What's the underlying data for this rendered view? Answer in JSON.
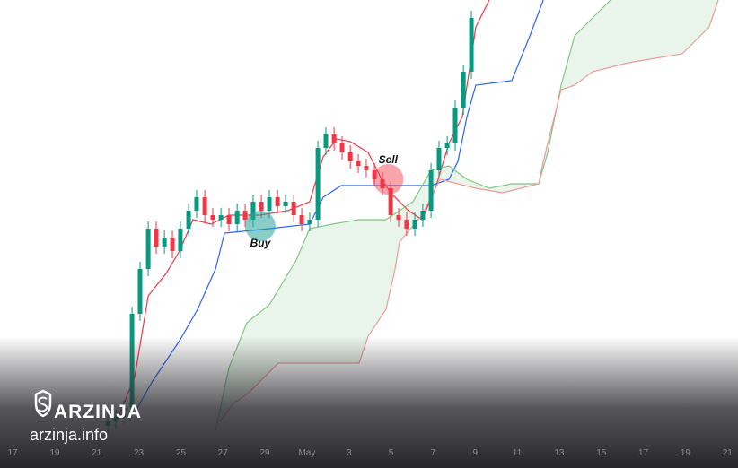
{
  "chart_data": {
    "type": "candlestick",
    "up_color": "#089981",
    "down_color": "#f23645",
    "xlim": [
      16.4,
      51.5
    ],
    "ylim": [
      0,
      522
    ],
    "xticks": [
      17,
      19,
      21,
      23,
      25,
      27,
      29,
      {
        "value": 31,
        "label": "May"
      },
      {
        "value": 33,
        "label": "3"
      },
      {
        "value": 35,
        "label": "5"
      },
      {
        "value": 37,
        "label": "7"
      },
      {
        "value": 39,
        "label": "9"
      },
      {
        "value": 41,
        "label": "11"
      },
      {
        "value": 43,
        "label": "13"
      },
      {
        "value": 45,
        "label": "15"
      },
      {
        "value": 47,
        "label": "17"
      },
      {
        "value": 49,
        "label": "19"
      },
      {
        "value": 51,
        "label": "21"
      }
    ],
    "x": [
      21.53,
      21.91,
      22.29,
      22.68,
      23.06,
      23.45,
      23.83,
      24.22,
      24.6,
      24.98,
      25.37,
      25.75,
      26.14,
      26.52,
      26.91,
      27.29,
      27.68,
      28.06,
      28.44,
      28.83,
      29.21,
      29.6,
      29.98,
      30.37,
      30.75,
      31.13,
      31.52,
      31.9,
      32.29,
      32.67,
      33.06,
      33.44,
      33.82,
      34.21,
      34.59,
      34.98,
      35.36,
      35.74,
      36.13,
      36.51,
      36.9,
      37.28,
      37.67,
      38.05,
      38.44,
      38.82
    ],
    "open": [
      47,
      52,
      57,
      67,
      172,
      222,
      267,
      247,
      257,
      242,
      267,
      287,
      302,
      282,
      277,
      282,
      272,
      287,
      277,
      297,
      287,
      302,
      292,
      297,
      282,
      272,
      277,
      357,
      372,
      362,
      352,
      342,
      337,
      332,
      322,
      312,
      282,
      277,
      267,
      277,
      287,
      332,
      357,
      362,
      402,
      442
    ],
    "high": [
      60,
      65,
      75,
      180,
      230,
      275,
      275,
      265,
      265,
      275,
      295,
      310,
      310,
      290,
      290,
      290,
      295,
      295,
      305,
      305,
      310,
      310,
      305,
      305,
      290,
      285,
      365,
      380,
      380,
      370,
      360,
      350,
      345,
      340,
      330,
      320,
      290,
      285,
      285,
      295,
      340,
      365,
      370,
      410,
      450,
      510
    ],
    "low": [
      39,
      44,
      49,
      59,
      164,
      214,
      239,
      239,
      234,
      234,
      259,
      279,
      274,
      269,
      269,
      264,
      264,
      269,
      269,
      279,
      279,
      284,
      284,
      274,
      264,
      264,
      269,
      349,
      354,
      344,
      334,
      329,
      324,
      314,
      304,
      274,
      269,
      259,
      259,
      269,
      279,
      324,
      349,
      354,
      394,
      434
    ],
    "close": [
      52,
      57,
      67,
      172,
      222,
      267,
      247,
      257,
      242,
      267,
      287,
      302,
      282,
      277,
      282,
      272,
      287,
      277,
      297,
      287,
      302,
      292,
      297,
      282,
      272,
      277,
      357,
      372,
      362,
      352,
      342,
      337,
      332,
      322,
      312,
      282,
      277,
      267,
      277,
      287,
      332,
      357,
      362,
      402,
      442,
      502
    ],
    "series": [
      {
        "color": "#f23645",
        "x": [
          21.95,
          22.81,
          23.45,
          24.3,
          24.94,
          25.58,
          26.44,
          27.29,
          28.78,
          30.07,
          31.13,
          31.77,
          32.41,
          33.06,
          33.91,
          34.55,
          34.98,
          35.83,
          36.47,
          37.11,
          37.75,
          38.39,
          39.03,
          39.67
        ],
        "values": [
          52,
          102,
          192,
          217,
          242,
          277,
          272,
          282,
          282,
          287,
          297,
          347,
          367,
          364,
          352,
          322,
          307,
          287,
          277,
          312,
          362,
          392,
          492,
          522
        ]
      },
      {
        "color": "#2962ff",
        "x": [
          22.81,
          23.66,
          24.94,
          25.8,
          26.65,
          27.08,
          29.21,
          31.13,
          31.77,
          32.63,
          34.34,
          36.9,
          37.75,
          38.18,
          38.61,
          39.03,
          40.74,
          41.6,
          42.24
        ],
        "values": [
          62,
          97,
          142,
          177,
          222,
          262,
          267,
          272,
          302,
          315,
          315,
          315,
          322,
          342,
          392,
          427,
          432,
          482,
          522
        ]
      },
      {
        "color": "#81c784",
        "x": [
          26.65,
          27.29,
          28.14,
          29.21,
          30.49,
          31.13,
          32.2,
          33.48,
          34.76,
          36.04,
          36.9,
          37.75,
          38.61,
          39.67,
          40.74,
          42.02,
          42.45,
          43.09,
          43.73,
          44.58,
          45.44
        ],
        "values": [
          42,
          112,
          162,
          182,
          232,
          267,
          272,
          277,
          277,
          297,
          332,
          337,
          322,
          312,
          317,
          317,
          352,
          427,
          482,
          502,
          522
        ]
      },
      {
        "color": "#ef9a9a",
        "x": [
          26.86,
          27.5,
          28.14,
          29.64,
          33.48,
          33.91,
          34.76,
          35.19,
          35.4,
          36.47,
          37.33,
          39.03,
          40.31,
          42.02,
          42.24,
          42.66,
          43.09,
          43.73,
          44.58,
          46.29,
          48.85,
          50.13,
          50.56
        ],
        "values": [
          52,
          72,
          82,
          117,
          117,
          147,
          177,
          222,
          252,
          282,
          322,
          312,
          307,
          317,
          342,
          382,
          422,
          427,
          442,
          452,
          462,
          492,
          522
        ]
      }
    ],
    "cloud_color": "rgba(76,175,80,0.12)",
    "annotations": [
      {
        "text": "Buy",
        "x": 28.78,
        "y": 270,
        "color": "rgba(38,166,154,0.55)"
      },
      {
        "text": "Sell",
        "x": 34.86,
        "y": 322,
        "color": "rgba(242,54,69,0.45)"
      }
    ],
    "watermark": {
      "brand": "ARZINJA",
      "site": "arzinja.info"
    }
  }
}
